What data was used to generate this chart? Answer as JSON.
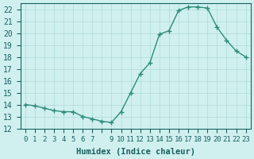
{
  "x": [
    0,
    1,
    2,
    3,
    4,
    5,
    6,
    7,
    8,
    9,
    10,
    11,
    12,
    13,
    14,
    15,
    16,
    17,
    18,
    19,
    20,
    21,
    22,
    23
  ],
  "y": [
    14,
    13.9,
    13.7,
    13.5,
    13.4,
    13.4,
    13.0,
    12.8,
    12.6,
    12.5,
    13.4,
    15.0,
    16.6,
    17.5,
    19.9,
    20.2,
    21.9,
    22.2,
    22.2,
    22.1,
    20.5,
    19.4,
    18.5,
    18.0
  ],
  "line_color": "#2e8b7a",
  "marker": "+",
  "marker_size": 5,
  "bg_color": "#d0f0f0",
  "grid_color": "#b0d8d8",
  "xlabel": "Humidex (Indice chaleur)",
  "ylim": [
    12,
    22.5
  ],
  "xlim": [
    -0.5,
    23.5
  ],
  "yticks": [
    12,
    13,
    14,
    15,
    16,
    17,
    18,
    19,
    20,
    21,
    22
  ],
  "xticks": [
    0,
    1,
    2,
    3,
    4,
    5,
    6,
    7,
    8,
    9,
    10,
    11,
    12,
    13,
    14,
    15,
    16,
    17,
    18,
    19,
    20,
    21,
    22,
    23
  ],
  "xtick_labels": [
    "0",
    "1",
    "2",
    "3",
    "4",
    "5",
    "6",
    "7",
    "",
    "9",
    "10",
    "11",
    "12",
    "13",
    "14",
    "15",
    "16",
    "17",
    "18",
    "19",
    "20",
    "21",
    "22",
    "23"
  ],
  "font_color": "#1a6060",
  "tick_color": "#1a6060",
  "xlabel_fontsize": 7.5,
  "tick_fontsize": 7
}
